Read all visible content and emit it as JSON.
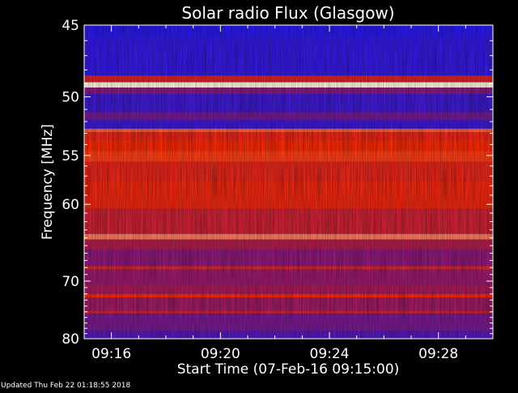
{
  "chart_data": {
    "type": "heatmap",
    "title": "Solar radio Flux (Glasgow)",
    "xlabel": "Start Time (07-Feb-16 09:15:00)",
    "ylabel": "Frequency [MHz]",
    "x_tick_labels": [
      "09:16",
      "09:20",
      "09:24",
      "09:28"
    ],
    "x_tick_minutes": [
      1,
      5,
      9,
      13
    ],
    "xlim_minutes": [
      0,
      15
    ],
    "y_ticks": [
      45,
      50,
      55,
      60,
      70,
      80
    ],
    "y_tick_labels": [
      "45",
      "50",
      "55",
      "60",
      "70",
      "80"
    ],
    "ylim": [
      45,
      80
    ],
    "y_scale": "reciprocal",
    "footer": "Updated Thu Feb 22 01:18:55 2018",
    "colors": {
      "background": "#000000",
      "axes": "#ffffff",
      "text": "#ffffff",
      "low": "#1a1aff",
      "mid": "#9a1a6a",
      "high": "#ff2a00",
      "peak": "#ffffe0"
    },
    "bands": [
      {
        "from": 45,
        "to": 45.7,
        "level": 0.05
      },
      {
        "from": 45.7,
        "to": 48.4,
        "level": 0.08
      },
      {
        "from": 48.4,
        "to": 48.9,
        "level": 0.65
      },
      {
        "from": 48.9,
        "to": 49.3,
        "level": 1.0
      },
      {
        "from": 49.3,
        "to": 49.8,
        "level": 0.35
      },
      {
        "from": 49.8,
        "to": 51.2,
        "level": 0.12
      },
      {
        "from": 51.2,
        "to": 51.9,
        "level": 0.28
      },
      {
        "from": 51.9,
        "to": 52.6,
        "level": 0.1
      },
      {
        "from": 52.6,
        "to": 52.9,
        "level": 0.85
      },
      {
        "from": 52.9,
        "to": 53.6,
        "level": 0.72
      },
      {
        "from": 53.6,
        "to": 54.6,
        "level": 0.78
      },
      {
        "from": 54.6,
        "to": 55.6,
        "level": 0.82
      },
      {
        "from": 55.6,
        "to": 57.5,
        "level": 0.7
      },
      {
        "from": 57.5,
        "to": 60.5,
        "level": 0.74
      },
      {
        "from": 60.5,
        "to": 63.5,
        "level": 0.6
      },
      {
        "from": 63.5,
        "to": 64.2,
        "level": 0.88
      },
      {
        "from": 64.2,
        "to": 65.5,
        "level": 0.5
      },
      {
        "from": 65.5,
        "to": 67.8,
        "level": 0.36
      },
      {
        "from": 67.8,
        "to": 68.3,
        "level": 0.68
      },
      {
        "from": 68.3,
        "to": 70.5,
        "level": 0.4
      },
      {
        "from": 70.5,
        "to": 72.0,
        "level": 0.46
      },
      {
        "from": 72.0,
        "to": 72.6,
        "level": 0.8
      },
      {
        "from": 72.6,
        "to": 74.8,
        "level": 0.42
      },
      {
        "from": 74.8,
        "to": 75.3,
        "level": 0.62
      },
      {
        "from": 75.3,
        "to": 78.5,
        "level": 0.3
      },
      {
        "from": 78.5,
        "to": 80,
        "level": 0.18
      }
    ]
  }
}
